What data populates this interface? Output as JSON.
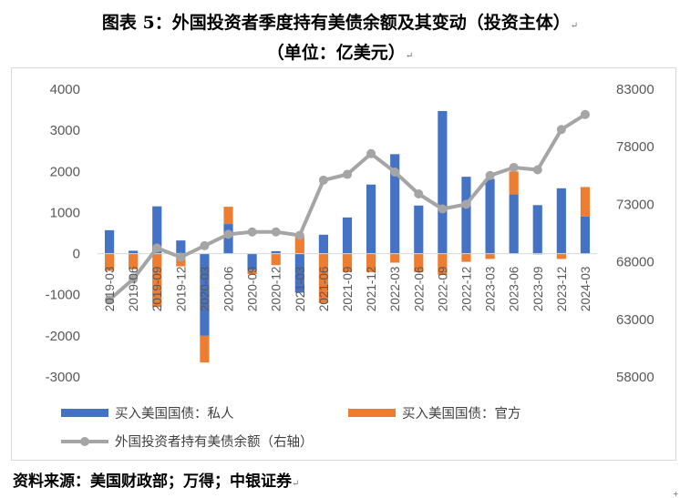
{
  "title": "图表 5：外国投资者季度持有美债余额及其变动（投资主体）",
  "subtitle": "（单位：亿美元）",
  "source": "资料来源：美国财政部；万得；中银证券",
  "colors": {
    "private": "#4472C4",
    "official": "#ED7D31",
    "holdings": "#A5A5A5"
  },
  "chart_data": {
    "type": "bar",
    "categories": [
      "2019-03",
      "2019-06",
      "2019-09",
      "2019-12",
      "2020-03",
      "2020-06",
      "2020-09",
      "2020-12",
      "2021-03",
      "2021-06",
      "2021-09",
      "2021-12",
      "2022-03",
      "2022-06",
      "2022-09",
      "2022-12",
      "2023-03",
      "2023-06",
      "2023-09",
      "2023-12",
      "2024-03"
    ],
    "series": [
      {
        "name": "买入美国国债：私人",
        "kind": "bar",
        "axis": "left",
        "values": [
          570,
          70,
          1150,
          320,
          -2000,
          720,
          -400,
          60,
          -950,
          460,
          880,
          1680,
          2420,
          1170,
          3470,
          1870,
          1820,
          1440,
          1180,
          1590,
          900
        ]
      },
      {
        "name": "买入美国国债：官方",
        "kind": "bar",
        "axis": "left",
        "values": [
          -420,
          -380,
          -1300,
          -310,
          -650,
          420,
          -100,
          -280,
          430,
          -1200,
          -450,
          -450,
          -220,
          -450,
          -520,
          -200,
          -130,
          560,
          -20,
          -130,
          720
        ]
      },
      {
        "name": "外国投资者持有美债余额（右轴）",
        "kind": "line",
        "axis": "right",
        "values": [
          64700,
          66500,
          69200,
          68400,
          69400,
          70400,
          70600,
          70600,
          70300,
          75100,
          75600,
          77400,
          75800,
          73900,
          72600,
          73000,
          75500,
          76200,
          76000,
          79500,
          80800
        ]
      }
    ],
    "y_left": {
      "min": -3000,
      "max": 4000,
      "step": 1000,
      "ticks": [
        "-3000",
        "-2000",
        "-1000",
        "0",
        "1000",
        "2000",
        "3000",
        "4000"
      ]
    },
    "y_right": {
      "min": 58000,
      "max": 83000,
      "step": 5000,
      "ticks": [
        "58000",
        "63000",
        "68000",
        "73000",
        "78000",
        "83000"
      ]
    },
    "legend_position": "bottom",
    "grid": false
  }
}
